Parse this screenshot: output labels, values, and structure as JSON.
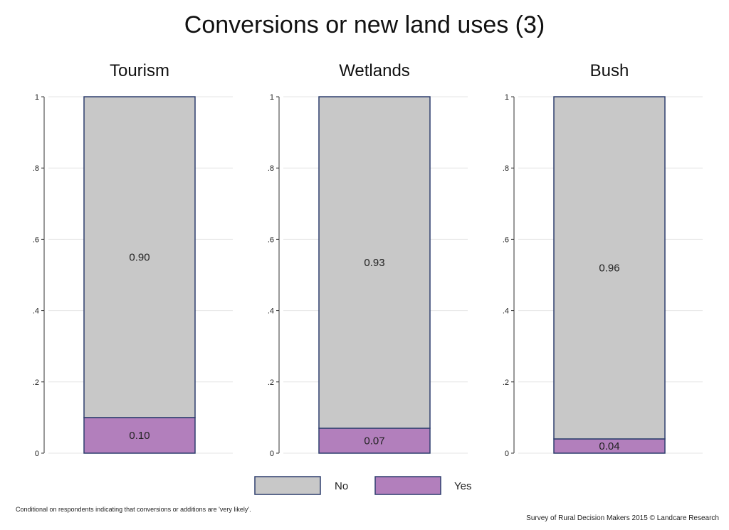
{
  "chart_data": {
    "type": "bar",
    "title": "Conversions or new land uses (3)",
    "stacked": true,
    "ylim": [
      0,
      1
    ],
    "y_ticks": [
      "0",
      ".2",
      ".4",
      ".6",
      ".8",
      "1"
    ],
    "grid": true,
    "legend_position": "bottom",
    "categories": [
      "Tourism",
      "Wetlands",
      "Bush"
    ],
    "series": [
      {
        "name": "No",
        "values": [
          0.9,
          0.93,
          0.96
        ],
        "labels": [
          "0.90",
          "0.93",
          "0.96"
        ],
        "color": "#c8c8c8"
      },
      {
        "name": "Yes",
        "values": [
          0.1,
          0.07,
          0.04
        ],
        "labels": [
          "0.10",
          "0.07",
          "0.04"
        ],
        "color": "#b27fbc"
      }
    ],
    "bar_outline_color": "#2e3f6e",
    "notes": {
      "left": "Conditional on respondents indicating that conversions or additions are 'very likely'.",
      "right": "Survey of Rural Decision Makers 2015 © Landcare Research"
    }
  }
}
